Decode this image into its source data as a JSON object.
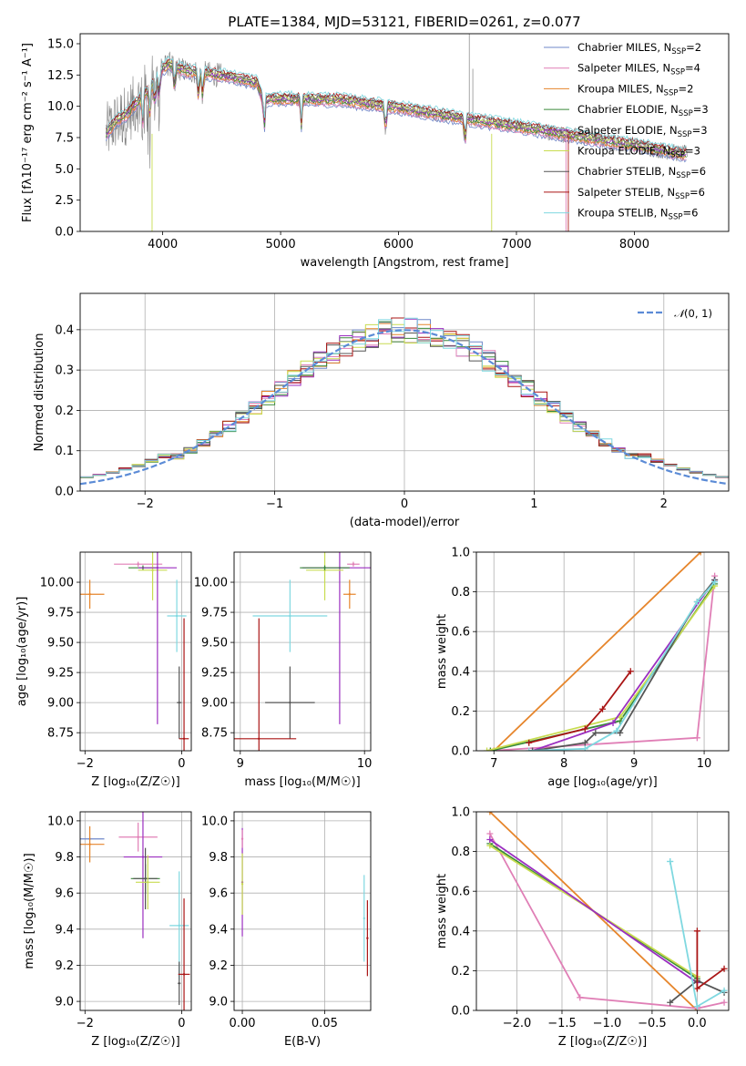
{
  "title": "PLATE=1384, MJD=53121, FIBERID=0261, z=0.077",
  "colors": {
    "Chabrier MILES": "#6f87c9",
    "Salpeter MILES": "#e07fb6",
    "Kroupa MILES": "#e6852b",
    "Chabrier ELODIE": "#3a8a3a",
    "Salpeter ELODIE": "#9b2fc0",
    "Kroupa ELODIE": "#c8dc50",
    "Chabrier STELIB": "#555555",
    "Salpeter STELIB": "#aa1515",
    "Kroupa STELIB": "#7fd8e0",
    "spectrum": "#808080",
    "gaussian": "#5b8bd6"
  },
  "chart_data": [
    {
      "type": "line",
      "xlabel": "wavelength [Angstrom, rest frame]",
      "ylabel": "Flux [f_λ 10^-17 erg cm^-2 s^-1 A^-1]",
      "xlim": [
        3300,
        8800
      ],
      "ylim": [
        0,
        15.8
      ],
      "xticks": [
        4000,
        5000,
        6000,
        7000,
        8000
      ],
      "yticks": [
        0.0,
        2.5,
        5.0,
        7.5,
        10.0,
        12.5,
        15.0
      ],
      "legend_position": "top-right",
      "legend": [
        {
          "label": "Chabrier MILES, N",
          "sub": "SSP",
          "tail": "=2"
        },
        {
          "label": "Salpeter MILES, N",
          "sub": "SSP",
          "tail": "=4"
        },
        {
          "label": "Kroupa MILES, N",
          "sub": "SSP",
          "tail": "=2"
        },
        {
          "label": "Chabrier ELODIE, N",
          "sub": "SSP",
          "tail": "=3"
        },
        {
          "label": "Salpeter ELODIE, N",
          "sub": "SSP",
          "tail": "=3"
        },
        {
          "label": "Kroupa ELODIE, N",
          "sub": "SSP",
          "tail": "=3"
        },
        {
          "label": "Chabrier STELIB, N",
          "sub": "SSP",
          "tail": "=6"
        },
        {
          "label": "Salpeter STELIB, N",
          "sub": "SSP",
          "tail": "=6"
        },
        {
          "label": "Kroupa STELIB, N",
          "sub": "SSP",
          "tail": "=6"
        }
      ],
      "model_continuum": {
        "x": [
          3500,
          3600,
          3700,
          3800,
          3900,
          4000,
          4050,
          4200,
          4400,
          4600,
          4800,
          4850,
          5000,
          5500,
          6000,
          6500,
          7000,
          7500,
          8000,
          8400
        ],
        "y": [
          7.5,
          8.8,
          9.4,
          10.5,
          11.5,
          13.0,
          13.4,
          12.8,
          12.6,
          12.3,
          11.9,
          10.5,
          10.6,
          10.5,
          9.9,
          9.1,
          8.4,
          7.6,
          6.9,
          6.2
        ]
      }
    },
    {
      "type": "line",
      "xlabel": "(data-model)/error",
      "ylabel": "Normed distribution",
      "xlim": [
        -2.5,
        2.5
      ],
      "ylim": [
        0,
        0.49
      ],
      "xticks": [
        -2,
        -1,
        0,
        1,
        2
      ],
      "yticks": [
        0.0,
        0.1,
        0.2,
        0.3,
        0.4
      ],
      "legend": "N(0, 1)",
      "legend_position": "top-right",
      "bin_width": 0.1
    },
    {
      "type": "scatter",
      "xlabel": "Z [log10(Z/Z☉)]",
      "ylabel": "age  [log10(age/yr)]",
      "xlim": [
        -2.1,
        0.2
      ],
      "ylim": [
        8.6,
        10.25
      ],
      "xticks": [
        -2,
        0
      ],
      "yticks": [
        8.75,
        9.0,
        9.25,
        9.5,
        9.75,
        10.0
      ],
      "points": [
        {
          "model": "Kroupa MILES",
          "x": -1.9,
          "xerr": 0.3,
          "y": 9.9,
          "yerr": 0.12
        },
        {
          "model": "Salpeter MILES",
          "x": -0.9,
          "xerr": 0.5,
          "y": 10.15,
          "yerr": 0.02
        },
        {
          "model": "Chabrier ELODIE",
          "x": -0.8,
          "xerr": 0.3,
          "y": 10.12,
          "yerr": 0.02
        },
        {
          "model": "Kroupa ELODIE",
          "x": -0.6,
          "xerr": 0.3,
          "y": 10.1,
          "yerr": 0.25
        },
        {
          "model": "Salpeter ELODIE",
          "x": -0.5,
          "xerr": 0.4,
          "y": 10.12,
          "yerr": 1.3
        },
        {
          "model": "Chabrier STELIB",
          "x": -0.05,
          "xerr": 0.05,
          "y": 9.0,
          "yerr": 0.3
        },
        {
          "model": "Salpeter STELIB",
          "x": 0.05,
          "xerr": 0.1,
          "y": 8.7,
          "yerr": 1.0
        },
        {
          "model": "Kroupa STELIB",
          "x": -0.1,
          "xerr": 0.2,
          "y": 9.72,
          "yerr": 0.3
        }
      ]
    },
    {
      "type": "scatter",
      "xlabel": "mass [log10(M/M☉)]",
      "ylabel": "",
      "xlim": [
        8.95,
        10.05
      ],
      "ylim": [
        8.6,
        10.25
      ],
      "xticks": [
        9,
        10
      ],
      "yticks": [
        8.75,
        9.0,
        9.25,
        9.5,
        9.75,
        10.0
      ],
      "points": [
        {
          "model": "Kroupa STELIB",
          "x": 9.4,
          "xerr": 0.3,
          "y": 9.72,
          "yerr": 0.3
        },
        {
          "model": "Chabrier STELIB",
          "x": 9.4,
          "xerr": 0.2,
          "y": 9.0,
          "yerr": 0.3
        },
        {
          "model": "Salpeter STELIB",
          "x": 9.15,
          "xerr": 0.3,
          "y": 8.7,
          "yerr": 1.0
        },
        {
          "model": "Salpeter ELODIE",
          "x": 9.8,
          "xerr": 0.3,
          "y": 10.12,
          "yerr": 1.3
        },
        {
          "model": "Kroupa ELODIE",
          "x": 9.68,
          "xerr": 0.15,
          "y": 10.1,
          "yerr": 0.25
        },
        {
          "model": "Chabrier ELODIE",
          "x": 9.68,
          "xerr": 0.2,
          "y": 10.12,
          "yerr": 0.02
        },
        {
          "model": "Salpeter MILES",
          "x": 9.91,
          "xerr": 0.05,
          "y": 10.15,
          "yerr": 0.02
        },
        {
          "model": "Kroupa MILES",
          "x": 9.88,
          "xerr": 0.05,
          "y": 9.9,
          "yerr": 0.12
        }
      ]
    },
    {
      "type": "line",
      "xlabel": "age  [log10(age/yr)]",
      "ylabel": "mass weight",
      "xlim": [
        6.75,
        10.35
      ],
      "ylim": [
        0,
        1.0
      ],
      "xticks": [
        7,
        8,
        9,
        10
      ],
      "yticks": [
        0.0,
        0.2,
        0.4,
        0.6,
        0.8,
        1.0
      ],
      "series": [
        {
          "model": "Kroupa MILES",
          "x": [
            7.0,
            9.95
          ],
          "y": [
            0.0,
            1.0
          ]
        },
        {
          "model": "Salpeter MILES",
          "x": [
            6.95,
            9.9,
            10.15
          ],
          "y": [
            0.0,
            0.065,
            0.88
          ]
        },
        {
          "model": "Chabrier ELODIE",
          "x": [
            6.95,
            8.8,
            10.15
          ],
          "y": [
            0.0,
            0.15,
            0.84
          ]
        },
        {
          "model": "Kroupa ELODIE",
          "x": [
            6.9,
            8.8,
            10.15
          ],
          "y": [
            0.0,
            0.17,
            0.83
          ]
        },
        {
          "model": "Salpeter ELODIE",
          "x": [
            7.55,
            8.7,
            10.15
          ],
          "y": [
            0.0,
            0.14,
            0.86
          ]
        },
        {
          "model": "Chabrier STELIB",
          "x": [
            7.55,
            8.3,
            8.45,
            8.8,
            9.9,
            10.15
          ],
          "y": [
            0.0,
            0.04,
            0.09,
            0.09,
            0.75,
            0.86
          ]
        },
        {
          "model": "Salpeter STELIB",
          "x": [
            7.5,
            8.3,
            8.55,
            8.95
          ],
          "y": [
            0.04,
            0.11,
            0.21,
            0.4
          ]
        },
        {
          "model": "Kroupa STELIB",
          "x": [
            7.5,
            8.3,
            8.75,
            9.9,
            10.15
          ],
          "y": [
            0.0,
            0.01,
            0.1,
            0.75,
            0.85
          ]
        }
      ]
    },
    {
      "type": "scatter",
      "xlabel": "Z [log10(Z/Z☉)]",
      "ylabel": "mass [log10(M/M☉)]",
      "xlim": [
        -2.1,
        0.2
      ],
      "ylim": [
        8.95,
        10.05
      ],
      "xticks": [
        -2,
        0
      ],
      "yticks": [
        9.0,
        9.2,
        9.4,
        9.6,
        9.8,
        10.0
      ],
      "points": [
        {
          "model": "Chabrier MILES",
          "x": -1.9,
          "xerr": 0.3,
          "y": 9.9,
          "yerr": 0.0
        },
        {
          "model": "Kroupa MILES",
          "x": -1.9,
          "xerr": 0.3,
          "y": 9.87,
          "yerr": 0.1
        },
        {
          "model": "Salpeter MILES",
          "x": -0.9,
          "xerr": 0.4,
          "y": 9.91,
          "yerr": 0.08
        },
        {
          "model": "Salpeter ELODIE",
          "x": -0.8,
          "xerr": 0.4,
          "y": 9.8,
          "yerr": 0.45
        },
        {
          "model": "Chabrier ELODIE",
          "x": -0.75,
          "xerr": 0.3,
          "y": 9.68,
          "yerr": 0.08
        },
        {
          "model": "Chabrier STELIB",
          "x": -0.75,
          "xerr": 0.25,
          "y": 9.68,
          "yerr": 0.17
        },
        {
          "model": "Kroupa ELODIE",
          "x": -0.7,
          "xerr": 0.25,
          "y": 9.66,
          "yerr": 0.15
        },
        {
          "model": "Kroupa STELIB",
          "x": -0.05,
          "xerr": 0.2,
          "y": 9.42,
          "yerr": 0.3
        },
        {
          "model": "Chabrier STELIB",
          "x": -0.05,
          "xerr": 0.03,
          "y": 9.1,
          "yerr": 0.12
        },
        {
          "model": "Salpeter STELIB",
          "x": 0.05,
          "xerr": 0.12,
          "y": 9.15,
          "yerr": 0.42
        }
      ]
    },
    {
      "type": "scatter",
      "xlabel": "E(B-V)",
      "ylabel": "",
      "xlim": [
        -0.005,
        0.078
      ],
      "ylim": [
        8.95,
        10.05
      ],
      "xticks": [
        0.0,
        0.05
      ],
      "yticks": [
        9.0,
        9.2,
        9.4,
        9.6,
        9.8,
        10.0
      ],
      "points": [
        {
          "model": "Salpeter ELODIE",
          "x": 0.0,
          "y": 9.66,
          "yerr": 0.3
        },
        {
          "model": "Kroupa ELODIE",
          "x": 0.0,
          "y": 9.65,
          "yerr": 0.17
        },
        {
          "model": "Salpeter MILES",
          "x": 0.0,
          "y": 9.9,
          "yerr": 0.05
        },
        {
          "model": "Kroupa STELIB",
          "x": 0.074,
          "y": 9.46,
          "yerr": 0.24
        },
        {
          "model": "Salpeter STELIB",
          "x": 0.076,
          "y": 9.35,
          "yerr": 0.21
        }
      ]
    },
    {
      "type": "line",
      "xlabel": "Z [log10(Z/Z☉)]",
      "ylabel": "mass weight",
      "xlim": [
        -2.45,
        0.35
      ],
      "ylim": [
        0,
        1.0
      ],
      "xticks": [
        -2.0,
        -1.5,
        -1.0,
        -0.5,
        0.0
      ],
      "yticks": [
        0.0,
        0.2,
        0.4,
        0.6,
        0.8,
        1.0
      ],
      "series": [
        {
          "model": "Kroupa MILES",
          "x": [
            -2.3,
            0.0
          ],
          "y": [
            1.0,
            0.0
          ]
        },
        {
          "model": "Salpeter MILES",
          "x": [
            -2.3,
            -1.3,
            0.0,
            0.3
          ],
          "y": [
            0.89,
            0.065,
            0.01,
            0.04
          ]
        },
        {
          "model": "Chabrier ELODIE",
          "x": [
            -2.3,
            0.0
          ],
          "y": [
            0.84,
            0.16
          ]
        },
        {
          "model": "Kroupa ELODIE",
          "x": [
            -2.3,
            0.0
          ],
          "y": [
            0.83,
            0.17
          ]
        },
        {
          "model": "Salpeter ELODIE",
          "x": [
            -2.3,
            0.0
          ],
          "y": [
            0.86,
            0.14
          ]
        },
        {
          "model": "Chabrier STELIB",
          "x": [
            -0.3,
            0.0,
            0.3
          ],
          "y": [
            0.04,
            0.15,
            0.09
          ]
        },
        {
          "model": "Salpeter STELIB",
          "x": [
            0.0,
            0.0,
            0.3
          ],
          "y": [
            0.4,
            0.11,
            0.21
          ]
        },
        {
          "model": "Kroupa STELIB",
          "x": [
            -0.3,
            -0.3,
            0.0,
            0.3
          ],
          "y": [
            0.75,
            0.75,
            0.02,
            0.1
          ]
        }
      ]
    }
  ]
}
